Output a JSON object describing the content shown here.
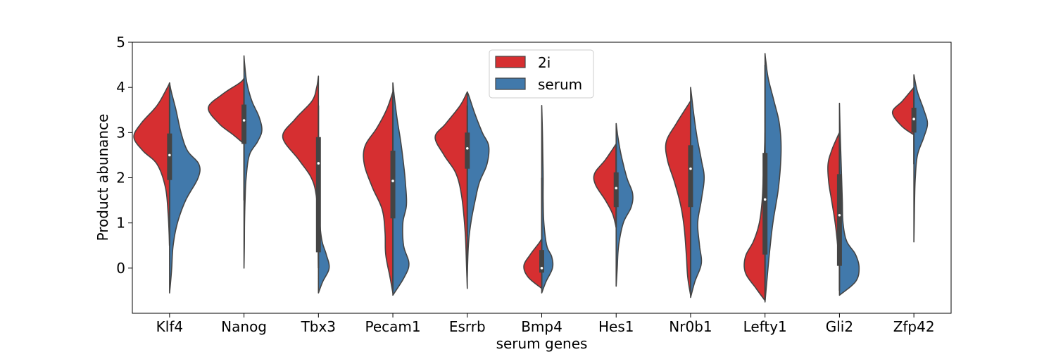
{
  "chart_data": {
    "type": "violin",
    "xlabel": "serum genes",
    "ylabel": "Product abunance",
    "categories": [
      "Klf4",
      "Nanog",
      "Tbx3",
      "Pecam1",
      "Esrrb",
      "Bmp4",
      "Hes1",
      "Nr0b1",
      "Lefty1",
      "Gli2",
      "Zfp42"
    ],
    "ylim": [
      -1.0,
      5.0
    ],
    "yticks": [
      "0",
      "1",
      "2",
      "3",
      "4",
      "5"
    ],
    "legend": {
      "position": "upper center",
      "entries": [
        "2i",
        "serum"
      ]
    },
    "grid": false,
    "colors": {
      "2i": "#d62f31",
      "serum": "#4179ab",
      "edge": "#444444"
    },
    "violins": [
      {
        "gene": "Klf4",
        "left": {
          "min": 0.5,
          "max": 4.1,
          "profile": [
            [
              0.5,
              0.0
            ],
            [
              1.2,
              0.04
            ],
            [
              1.8,
              0.12
            ],
            [
              2.3,
              0.35
            ],
            [
              2.6,
              0.75
            ],
            [
              2.9,
              1.0
            ],
            [
              3.2,
              0.8
            ],
            [
              3.6,
              0.35
            ],
            [
              4.0,
              0.06
            ],
            [
              4.1,
              0.0
            ]
          ]
        },
        "right": {
          "min": -0.55,
          "max": 4.1,
          "profile": [
            [
              -0.55,
              0.0
            ],
            [
              -0.3,
              0.03
            ],
            [
              0.0,
              0.06
            ],
            [
              0.5,
              0.1
            ],
            [
              1.0,
              0.22
            ],
            [
              1.5,
              0.45
            ],
            [
              2.0,
              0.8
            ],
            [
              2.3,
              0.82
            ],
            [
              2.6,
              0.5
            ],
            [
              3.0,
              0.32
            ],
            [
              3.5,
              0.18
            ],
            [
              3.9,
              0.05
            ],
            [
              4.1,
              0.0
            ]
          ]
        },
        "box": {
          "q1": 1.95,
          "q3": 2.98,
          "whisker_low": 0.5,
          "whisker_high": 4.1,
          "median": 2.5
        }
      },
      {
        "gene": "Nanog",
        "left": {
          "min": 2.75,
          "max": 4.2,
          "profile": [
            [
              2.75,
              0.0
            ],
            [
              2.95,
              0.3
            ],
            [
              3.2,
              0.7
            ],
            [
              3.55,
              1.0
            ],
            [
              3.85,
              0.6
            ],
            [
              4.1,
              0.12
            ],
            [
              4.2,
              0.0
            ]
          ]
        },
        "right": {
          "min": 0.0,
          "max": 4.7,
          "profile": [
            [
              0.0,
              0.0
            ],
            [
              0.5,
              0.01
            ],
            [
              1.0,
              0.015
            ],
            [
              1.5,
              0.03
            ],
            [
              2.0,
              0.06
            ],
            [
              2.5,
              0.15
            ],
            [
              2.8,
              0.38
            ],
            [
              3.05,
              0.5
            ],
            [
              3.35,
              0.42
            ],
            [
              3.7,
              0.22
            ],
            [
              4.1,
              0.08
            ],
            [
              4.5,
              0.02
            ],
            [
              4.7,
              0.0
            ]
          ]
        },
        "box": {
          "q1": 2.75,
          "q3": 3.62,
          "whisker_low": 1.5,
          "whisker_high": 4.2,
          "median": 3.27
        }
      },
      {
        "gene": "Tbx3",
        "left": {
          "min": 0.0,
          "max": 4.25,
          "profile": [
            [
              0.0,
              0.0
            ],
            [
              1.0,
              0.02
            ],
            [
              1.6,
              0.06
            ],
            [
              2.0,
              0.2
            ],
            [
              2.4,
              0.55
            ],
            [
              2.9,
              1.0
            ],
            [
              3.3,
              0.65
            ],
            [
              3.7,
              0.18
            ],
            [
              4.0,
              0.05
            ],
            [
              4.25,
              0.0
            ]
          ]
        },
        "right": {
          "min": -0.55,
          "max": 2.5,
          "profile": [
            [
              -0.55,
              0.0
            ],
            [
              -0.3,
              0.12
            ],
            [
              0.0,
              0.3
            ],
            [
              0.3,
              0.22
            ],
            [
              0.6,
              0.1
            ],
            [
              1.0,
              0.04
            ],
            [
              1.5,
              0.02
            ],
            [
              2.0,
              0.01
            ],
            [
              2.5,
              0.0
            ]
          ]
        },
        "box": {
          "q1": 0.35,
          "q3": 2.9,
          "whisker_low": 0.0,
          "whisker_high": 3.6,
          "median": 2.32
        }
      },
      {
        "gene": "Pecam1",
        "left": {
          "min": -0.55,
          "max": 3.9,
          "profile": [
            [
              -0.55,
              0.0
            ],
            [
              -0.2,
              0.08
            ],
            [
              0.3,
              0.2
            ],
            [
              0.8,
              0.22
            ],
            [
              1.3,
              0.3
            ],
            [
              1.8,
              0.58
            ],
            [
              2.3,
              0.8
            ],
            [
              2.7,
              0.78
            ],
            [
              3.1,
              0.45
            ],
            [
              3.5,
              0.18
            ],
            [
              3.9,
              0.0
            ]
          ]
        },
        "right": {
          "min": -0.6,
          "max": 4.1,
          "profile": [
            [
              -0.6,
              0.0
            ],
            [
              -0.2,
              0.32
            ],
            [
              0.1,
              0.45
            ],
            [
              0.5,
              0.3
            ],
            [
              1.0,
              0.28
            ],
            [
              1.4,
              0.38
            ],
            [
              1.9,
              0.35
            ],
            [
              2.3,
              0.3
            ],
            [
              2.8,
              0.22
            ],
            [
              3.3,
              0.12
            ],
            [
              3.8,
              0.04
            ],
            [
              4.1,
              0.0
            ]
          ]
        },
        "box": {
          "q1": 1.1,
          "q3": 2.6,
          "whisker_low": -0.5,
          "whisker_high": 3.8,
          "median": 1.93
        }
      },
      {
        "gene": "Esrrb",
        "left": {
          "min": -0.45,
          "max": 3.9,
          "profile": [
            [
              -0.45,
              0.0
            ],
            [
              0.0,
              0.02
            ],
            [
              0.8,
              0.06
            ],
            [
              1.6,
              0.16
            ],
            [
              2.1,
              0.32
            ],
            [
              2.5,
              0.65
            ],
            [
              2.9,
              0.9
            ],
            [
              3.2,
              0.6
            ],
            [
              3.6,
              0.2
            ],
            [
              3.9,
              0.0
            ]
          ]
        },
        "right": {
          "min": -0.2,
          "max": 3.9,
          "profile": [
            [
              -0.2,
              0.0
            ],
            [
              0.5,
              0.03
            ],
            [
              1.0,
              0.1
            ],
            [
              1.5,
              0.22
            ],
            [
              1.9,
              0.34
            ],
            [
              2.3,
              0.55
            ],
            [
              2.7,
              0.6
            ],
            [
              3.0,
              0.42
            ],
            [
              3.4,
              0.22
            ],
            [
              3.8,
              0.05
            ],
            [
              3.9,
              0.0
            ]
          ]
        },
        "box": {
          "q1": 2.2,
          "q3": 3.0,
          "whisker_low": 0.7,
          "whisker_high": 3.6,
          "median": 2.65
        }
      },
      {
        "gene": "Bmp4",
        "left": {
          "min": -0.45,
          "max": 0.65,
          "profile": [
            [
              -0.45,
              0.0
            ],
            [
              -0.2,
              0.38
            ],
            [
              0.05,
              0.5
            ],
            [
              0.3,
              0.32
            ],
            [
              0.55,
              0.08
            ],
            [
              0.65,
              0.0
            ]
          ]
        },
        "right": {
          "min": -0.55,
          "max": 3.6,
          "profile": [
            [
              -0.55,
              0.0
            ],
            [
              -0.3,
              0.12
            ],
            [
              0.0,
              0.3
            ],
            [
              0.25,
              0.28
            ],
            [
              0.5,
              0.14
            ],
            [
              1.0,
              0.06
            ],
            [
              1.5,
              0.04
            ],
            [
              2.0,
              0.04
            ],
            [
              2.5,
              0.03
            ],
            [
              3.0,
              0.02
            ],
            [
              3.6,
              0.0
            ]
          ]
        },
        "box": {
          "q1": -0.1,
          "q3": 0.4,
          "whisker_low": -0.45,
          "whisker_high": 2.0,
          "median": 0.0
        }
      },
      {
        "gene": "Hes1",
        "left": {
          "min": 0.9,
          "max": 2.75,
          "profile": [
            [
              0.9,
              0.0
            ],
            [
              1.2,
              0.1
            ],
            [
              1.5,
              0.3
            ],
            [
              1.85,
              0.58
            ],
            [
              2.1,
              0.6
            ],
            [
              2.4,
              0.3
            ],
            [
              2.75,
              0.0
            ]
          ]
        },
        "right": {
          "min": -0.4,
          "max": 3.2,
          "profile": [
            [
              -0.4,
              0.0
            ],
            [
              0.0,
              0.03
            ],
            [
              0.5,
              0.07
            ],
            [
              1.0,
              0.2
            ],
            [
              1.35,
              0.42
            ],
            [
              1.65,
              0.46
            ],
            [
              2.0,
              0.3
            ],
            [
              2.5,
              0.14
            ],
            [
              2.9,
              0.05
            ],
            [
              3.2,
              0.0
            ]
          ]
        },
        "box": {
          "q1": 1.35,
          "q3": 2.12,
          "whisker_low": 0.9,
          "whisker_high": 2.7,
          "median": 1.77
        }
      },
      {
        "gene": "Nr0b1",
        "left": {
          "min": -0.6,
          "max": 3.7,
          "profile": [
            [
              -0.6,
              0.0
            ],
            [
              -0.2,
              0.08
            ],
            [
              0.3,
              0.12
            ],
            [
              0.9,
              0.18
            ],
            [
              1.4,
              0.28
            ],
            [
              1.9,
              0.45
            ],
            [
              2.4,
              0.65
            ],
            [
              2.8,
              0.68
            ],
            [
              3.2,
              0.4
            ],
            [
              3.6,
              0.08
            ],
            [
              3.7,
              0.0
            ]
          ]
        },
        "right": {
          "min": -0.65,
          "max": 4.0,
          "profile": [
            [
              -0.65,
              0.0
            ],
            [
              -0.3,
              0.12
            ],
            [
              0.1,
              0.3
            ],
            [
              0.5,
              0.25
            ],
            [
              1.0,
              0.2
            ],
            [
              1.5,
              0.3
            ],
            [
              2.0,
              0.38
            ],
            [
              2.4,
              0.3
            ],
            [
              2.9,
              0.18
            ],
            [
              3.4,
              0.09
            ],
            [
              3.8,
              0.03
            ],
            [
              4.0,
              0.0
            ]
          ]
        },
        "box": {
          "q1": 1.35,
          "q3": 2.72,
          "whisker_low": -0.5,
          "whisker_high": 3.6,
          "median": 2.2
        }
      },
      {
        "gene": "Lefty1",
        "left": {
          "min": -0.72,
          "max": 3.0,
          "profile": [
            [
              -0.72,
              0.0
            ],
            [
              -0.45,
              0.25
            ],
            [
              -0.1,
              0.55
            ],
            [
              0.25,
              0.55
            ],
            [
              0.6,
              0.32
            ],
            [
              1.0,
              0.16
            ],
            [
              1.5,
              0.08
            ],
            [
              2.0,
              0.05
            ],
            [
              2.5,
              0.02
            ],
            [
              3.0,
              0.0
            ]
          ]
        },
        "right": {
          "min": -0.75,
          "max": 4.75,
          "profile": [
            [
              -0.75,
              0.0
            ],
            [
              -0.3,
              0.05
            ],
            [
              0.3,
              0.12
            ],
            [
              1.0,
              0.22
            ],
            [
              1.8,
              0.38
            ],
            [
              2.6,
              0.45
            ],
            [
              3.2,
              0.4
            ],
            [
              3.7,
              0.25
            ],
            [
              4.2,
              0.09
            ],
            [
              4.6,
              0.02
            ],
            [
              4.75,
              0.0
            ]
          ]
        },
        "box": {
          "q1": 0.3,
          "q3": 2.55,
          "whisker_low": -0.7,
          "whisker_high": 4.5,
          "median": 1.52
        }
      },
      {
        "gene": "Gli2",
        "left": {
          "min": 0.0,
          "max": 3.0,
          "profile": [
            [
              0.0,
              0.0
            ],
            [
              0.5,
              0.05
            ],
            [
              1.0,
              0.12
            ],
            [
              1.5,
              0.22
            ],
            [
              1.9,
              0.3
            ],
            [
              2.3,
              0.32
            ],
            [
              2.6,
              0.22
            ],
            [
              2.9,
              0.06
            ],
            [
              3.0,
              0.0
            ]
          ]
        },
        "right": {
          "min": -0.6,
          "max": 3.65,
          "profile": [
            [
              -0.6,
              0.0
            ],
            [
              -0.3,
              0.45
            ],
            [
              0.0,
              0.55
            ],
            [
              0.3,
              0.45
            ],
            [
              0.6,
              0.2
            ],
            [
              1.0,
              0.1
            ],
            [
              1.5,
              0.08
            ],
            [
              2.0,
              0.06
            ],
            [
              2.5,
              0.04
            ],
            [
              3.0,
              0.02
            ],
            [
              3.65,
              0.0
            ]
          ]
        },
        "box": {
          "q1": 0.05,
          "q3": 2.08,
          "whisker_low": -0.5,
          "whisker_high": 3.0,
          "median": 1.17
        }
      },
      {
        "gene": "Zfp42",
        "left": {
          "min": 2.95,
          "max": 4.0,
          "profile": [
            [
              2.95,
              0.0
            ],
            [
              3.15,
              0.35
            ],
            [
              3.45,
              0.6
            ],
            [
              3.7,
              0.32
            ],
            [
              4.0,
              0.0
            ]
          ]
        },
        "right": {
          "min": 0.58,
          "max": 4.28,
          "profile": [
            [
              0.58,
              0.0
            ],
            [
              1.0,
              0.01
            ],
            [
              1.5,
              0.02
            ],
            [
              2.0,
              0.04
            ],
            [
              2.5,
              0.1
            ],
            [
              2.9,
              0.28
            ],
            [
              3.2,
              0.38
            ],
            [
              3.5,
              0.28
            ],
            [
              3.9,
              0.1
            ],
            [
              4.28,
              0.0
            ]
          ]
        },
        "box": {
          "q1": 3.0,
          "q3": 3.55,
          "whisker_low": 2.3,
          "whisker_high": 4.0,
          "median": 3.3
        }
      }
    ]
  }
}
